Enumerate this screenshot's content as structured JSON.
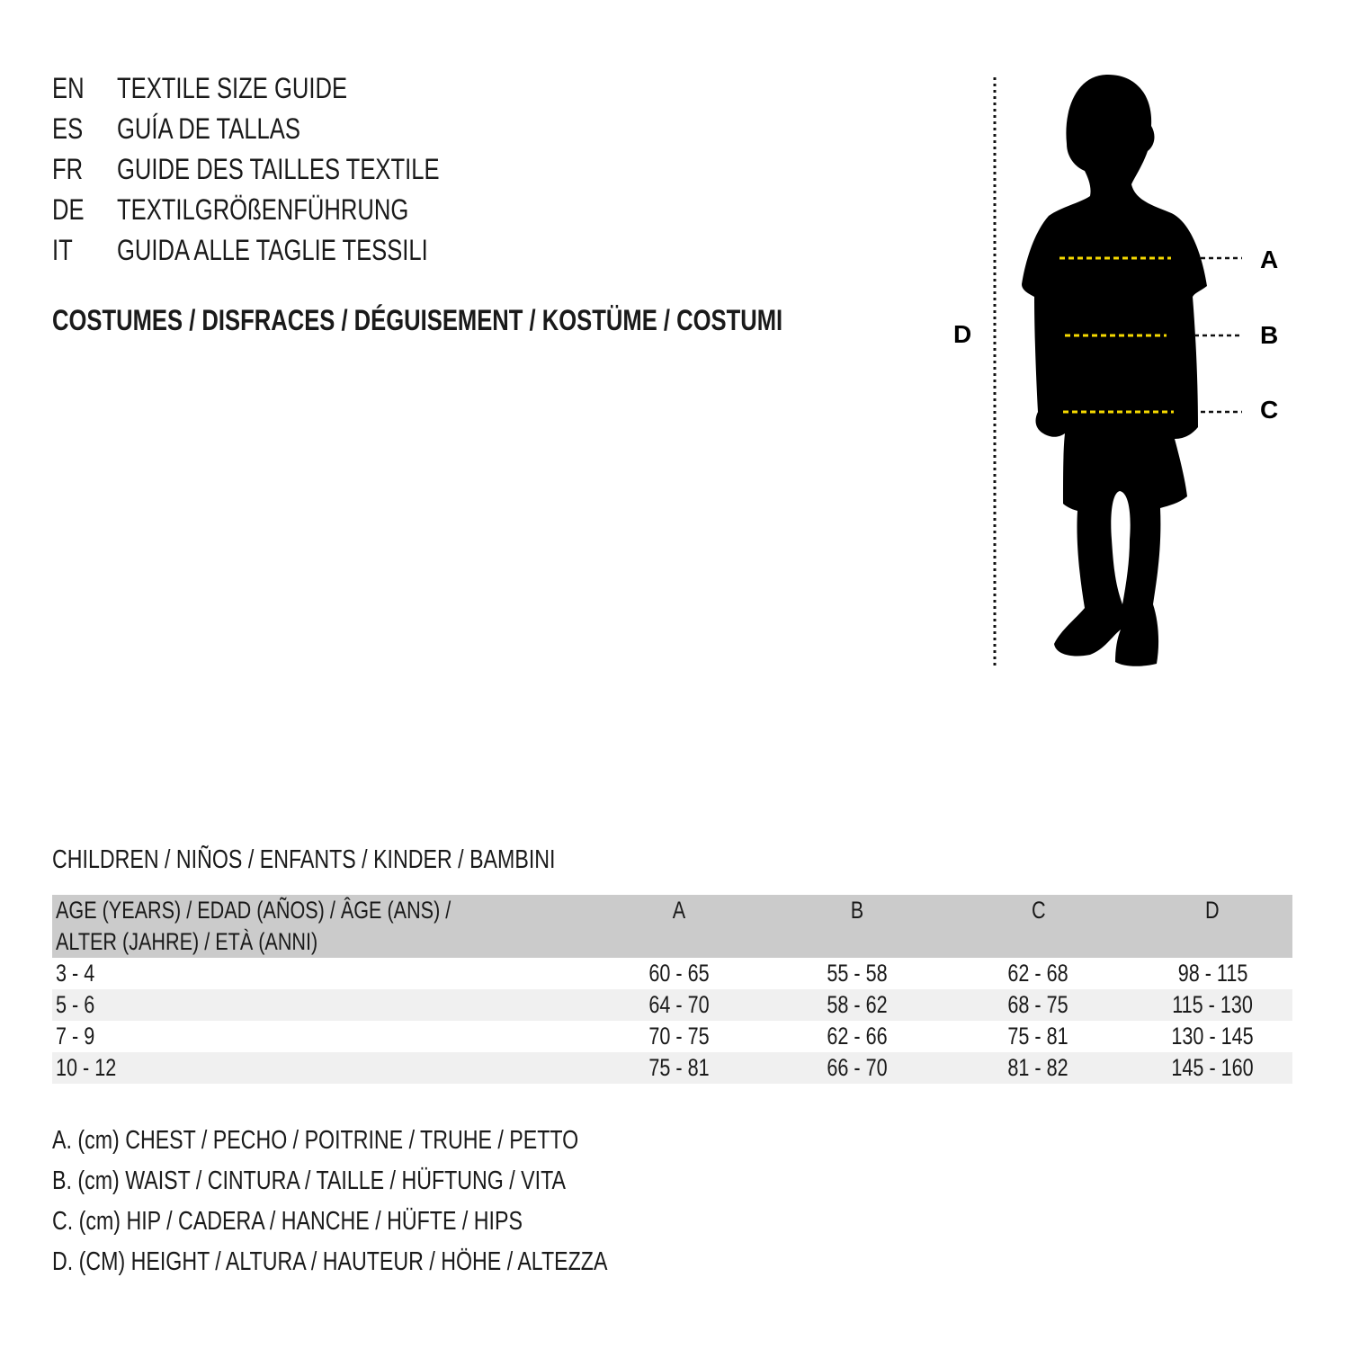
{
  "header": {
    "languages": [
      {
        "code": "EN",
        "title": "TEXTILE SIZE GUIDE"
      },
      {
        "code": "ES",
        "title": "GUÍA DE TALLAS"
      },
      {
        "code": "FR",
        "title": "GUIDE DES TAILLES TEXTILE"
      },
      {
        "code": "DE",
        "title": "TEXTILGRÖßENFÜHRUNG"
      },
      {
        "code": "IT",
        "title": "GUIDA ALLE TAGLIE TESSILI"
      }
    ],
    "category": "COSTUMES / DISFRACES / DÉGUISEMENT / KOSTÜME / COSTUMI"
  },
  "figure": {
    "labels": {
      "a": "A",
      "b": "B",
      "c": "C",
      "d": "D"
    },
    "measure_line_color": "#f5d800"
  },
  "table": {
    "section_title": "CHILDREN / NIÑOS / ENFANTS / KINDER / BAMBINI",
    "age_header_line1": "AGE (YEARS) / EDAD (AÑOS) / ÂGE (ANS) /",
    "age_header_line2": "ALTER (JAHRE) / ETÀ (ANNI)",
    "columns": [
      "A",
      "B",
      "C",
      "D"
    ],
    "rows": [
      {
        "age": "3 - 4",
        "a": "60 - 65",
        "b": "55 - 58",
        "c": "62 - 68",
        "d": "98 - 115"
      },
      {
        "age": "5 - 6",
        "a": "64 - 70",
        "b": "58 - 62",
        "c": "68 - 75",
        "d": "115 - 130"
      },
      {
        "age": "7 - 9",
        "a": "70 - 75",
        "b": "62 - 66",
        "c": "75 - 81",
        "d": "130 - 145"
      },
      {
        "age": "10 - 12",
        "a": "75 - 81",
        "b": "66 - 70",
        "c": "81 - 82",
        "d": "145 - 160"
      }
    ],
    "header_color": "#cbcbcb",
    "stripe_color": "#f0f0f0"
  },
  "legend": [
    "A. (cm) CHEST / PECHO / POITRINE / TRUHE / PETTO",
    "B. (cm) WAIST / CINTURA / TAILLE / HÜFTUNG / VITA",
    "C. (cm) HIP / CADERA / HANCHE / HÜFTE / HIPS",
    "D. (CM) HEIGHT / ALTURA / HAUTEUR / HÖHE / ALTEZZA"
  ]
}
